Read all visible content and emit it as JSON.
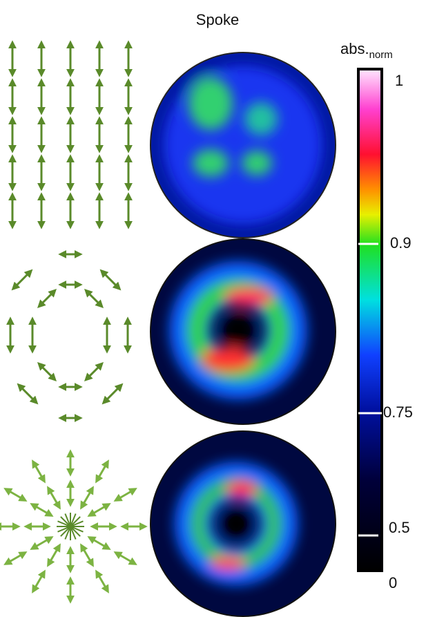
{
  "header": {
    "title": "Spoke"
  },
  "colorbar": {
    "title": "abs.",
    "subscript": "norm",
    "labels": [
      "1",
      "0.9",
      "0.75",
      "0.5",
      "0"
    ]
  }
}
